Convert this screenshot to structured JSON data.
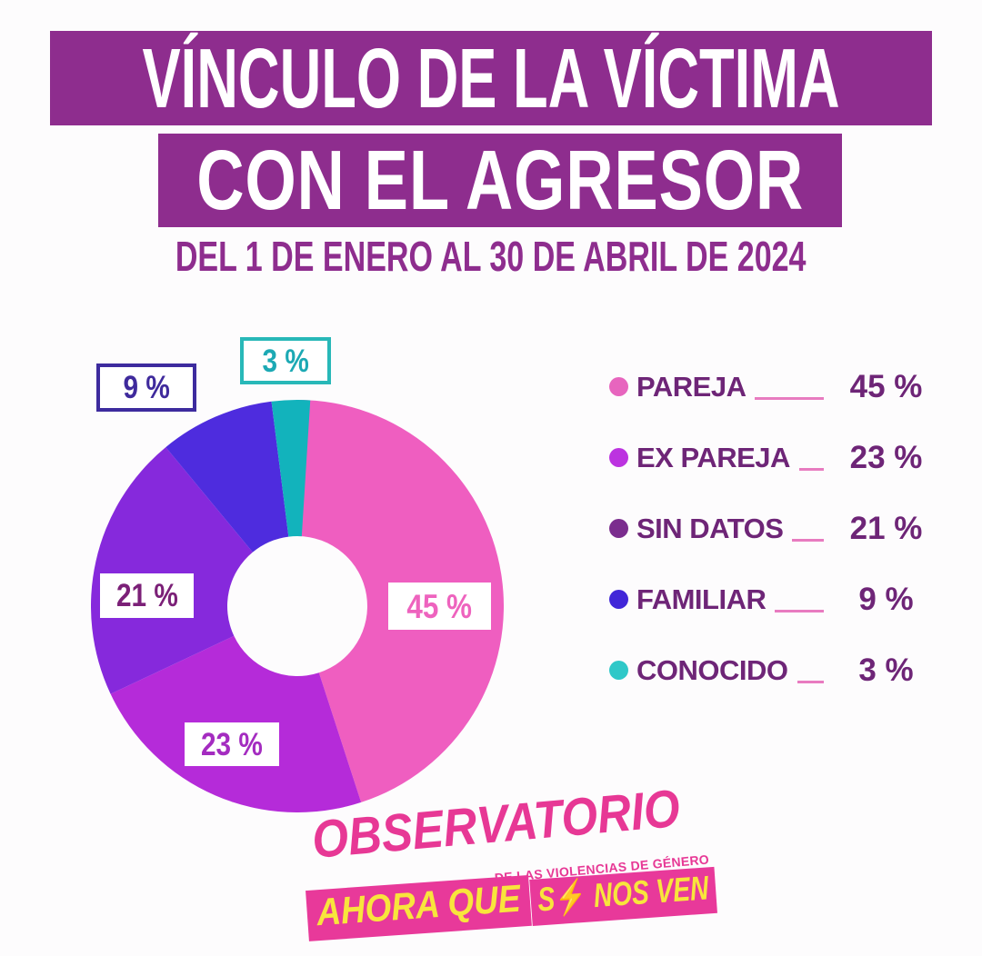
{
  "header": {
    "title_line1": "VÍNCULO DE LA VÍCTIMA",
    "title_line2": "CON EL AGRESOR",
    "subtitle": "DEL 1 DE ENERO AL 30 DE ABRIL DE 2024",
    "banner_color": "#8E2D8E"
  },
  "chart_data": {
    "type": "pie",
    "donut": true,
    "title": "Vínculo de la víctima con el agresor",
    "period": "Del 1 de enero al 30 de abril de 2024",
    "categories": [
      "PAREJA",
      "EX PAREJA",
      "SIN DATOS",
      "FAMILIAR",
      "CONOCIDO"
    ],
    "values": [
      45,
      23,
      21,
      9,
      3
    ],
    "unit": "%",
    "colors": [
      "#EF5EC0",
      "#B52BD9",
      "#8629DC",
      "#4E2CDE",
      "#12B3BC"
    ],
    "start_angle_deg": 0,
    "direction": "clockwise",
    "inner_radius_ratio": 0.34,
    "legend_position": "right"
  },
  "callouts": {
    "pareja": {
      "text": "45 %",
      "placement": "inside",
      "color": "#EE63BE"
    },
    "expareja": {
      "text": "23 %",
      "placement": "inside",
      "color": "#A42CC0"
    },
    "sindatos": {
      "text": "21 %",
      "placement": "inside",
      "color": "#7B2077"
    },
    "familiar": {
      "text": "9 %",
      "placement": "outside",
      "color": "#3F2A9C",
      "border_color": "#3D2B9E"
    },
    "conocido": {
      "text": "3 %",
      "placement": "outside",
      "color": "#1CA9B4",
      "border_color": "#28B8B8"
    }
  },
  "legend": {
    "text_color": "#6E2577",
    "line_color": "#E87BC0",
    "items": [
      {
        "label": "PAREJA",
        "value": "45 %",
        "dot_color": "#E765BE"
      },
      {
        "label": "EX PAREJA",
        "value": "23 %",
        "dot_color": "#BC33E0"
      },
      {
        "label": "SIN DATOS",
        "value": "21 %",
        "dot_color": "#7B2D8E"
      },
      {
        "label": "FAMILIAR",
        "value": "9 %",
        "dot_color": "#4127D8"
      },
      {
        "label": "CONOCIDO",
        "value": "3 %",
        "dot_color": "#2FC8C8"
      }
    ]
  },
  "footer_logo": {
    "name": "OBSERVATORIO",
    "tagline": "DE LAS VIOLENCIAS DE GÉNERO",
    "slogan_left": "AHORA QUE",
    "slogan_right_pre": "S",
    "slogan_bolt": "⚡",
    "slogan_right_post": " NOS VEN",
    "pink": "#E73895",
    "banner_pink": "#E8399A",
    "yellow": "#F8E53C"
  }
}
